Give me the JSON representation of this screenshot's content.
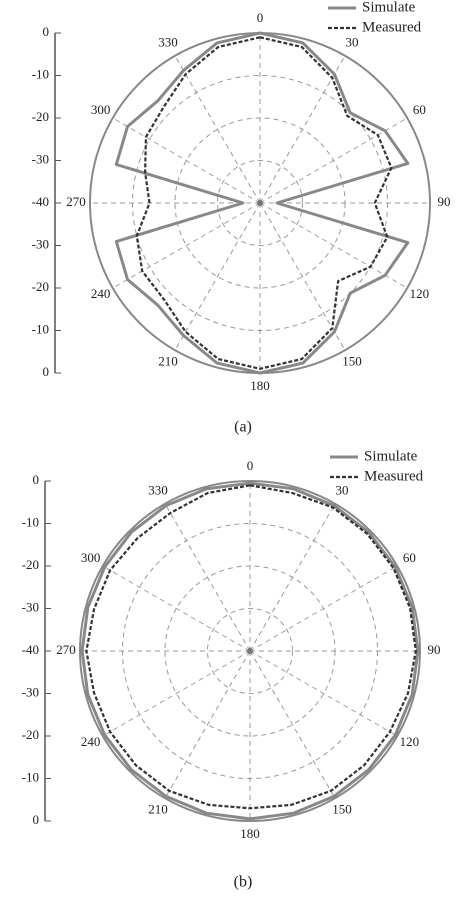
{
  "chart_data": [
    {
      "type": "polar",
      "caption": "(a)",
      "theta": [
        0,
        15,
        30,
        45,
        60,
        75,
        90,
        105,
        120,
        135,
        150,
        165,
        180,
        195,
        210,
        225,
        240,
        255,
        270,
        285,
        300,
        315,
        330,
        345
      ],
      "rlim": [
        -40,
        0
      ],
      "rticks": [
        -40,
        -30,
        -20,
        -10,
        0
      ],
      "angle_ticks": [
        0,
        30,
        60,
        90,
        120,
        150,
        180,
        210,
        240,
        270,
        300,
        330
      ],
      "grid": true,
      "series": [
        {
          "name": "Simulate",
          "color": "#888888",
          "dash": false,
          "values": [
            0,
            -1,
            -5,
            -10,
            -6,
            -4,
            -36,
            -4,
            -6,
            -10,
            -5,
            -1,
            0,
            -1,
            -4,
            -6,
            -4,
            -5,
            -36,
            -5,
            -4,
            -6,
            -4,
            -1
          ]
        },
        {
          "name": "Measured",
          "color": "#333333",
          "dash": true,
          "values": [
            -1,
            -2,
            -6,
            -11,
            -8,
            -8,
            -13,
            -9,
            -10,
            -14,
            -6,
            -2,
            -1,
            -2,
            -5,
            -8,
            -8,
            -10,
            -14,
            -12,
            -9,
            -8,
            -5,
            -2
          ]
        }
      ]
    },
    {
      "type": "polar",
      "caption": "(b)",
      "theta": [
        0,
        15,
        30,
        45,
        60,
        75,
        90,
        105,
        120,
        135,
        150,
        165,
        180,
        195,
        210,
        225,
        240,
        255,
        270,
        285,
        300,
        315,
        330,
        345
      ],
      "rlim": [
        -40,
        0
      ],
      "rticks": [
        -40,
        -30,
        -20,
        -10,
        0
      ],
      "angle_ticks": [
        0,
        30,
        60,
        90,
        120,
        150,
        180,
        210,
        240,
        270,
        300,
        330
      ],
      "grid": true,
      "series": [
        {
          "name": "Simulate",
          "color": "#888888",
          "dash": false,
          "values": [
            -0.5,
            -0.5,
            -0.5,
            -0.5,
            -0.5,
            -0.5,
            -0.5,
            -0.5,
            -0.5,
            -0.5,
            -0.5,
            -0.5,
            -0.5,
            -0.5,
            -0.5,
            -0.5,
            -0.5,
            -0.5,
            -0.5,
            -0.5,
            -0.5,
            -0.5,
            -0.5,
            -0.5
          ]
        },
        {
          "name": "Measured",
          "color": "#333333",
          "dash": true,
          "values": [
            -1,
            -1.5,
            -1,
            -1,
            -1,
            -1,
            -1,
            -1.5,
            -2,
            -2,
            -2,
            -2.5,
            -3,
            -2.5,
            -2,
            -2,
            -2,
            -2,
            -1.5,
            -2,
            -2,
            -2.5,
            -2.5,
            -1.5
          ]
        }
      ]
    }
  ]
}
